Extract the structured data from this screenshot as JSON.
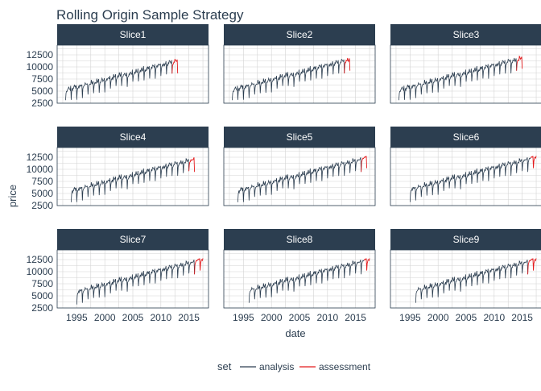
{
  "chart_data": {
    "type": "line",
    "title": "Rolling Origin Sample Strategy",
    "xlabel": "date",
    "ylabel": "price",
    "xlim": [
      1991.5,
      2018.5
    ],
    "ylim": [
      2500,
      14500
    ],
    "x_ticks": [
      1995,
      2000,
      2005,
      2010,
      2015
    ],
    "x_tick_labels": [
      "1995",
      "2000",
      "2005",
      "2010",
      "2015"
    ],
    "y_ticks": [
      2500,
      5000,
      7500,
      10000,
      12500
    ],
    "y_tick_labels": [
      "2500",
      "5000",
      "7500",
      "10000",
      "12500"
    ],
    "grid": true,
    "legend": {
      "title": "set",
      "position": "bottom",
      "entries": [
        {
          "label": "analysis",
          "color": "#2c3e50"
        },
        {
          "label": "assessment",
          "color": "#e31a1c"
        }
      ]
    },
    "colors": {
      "analysis": "#2c3e50",
      "assessment": "#e31a1c",
      "strip": "#2c3e50",
      "strip_text": "#ffffff",
      "grid": "#d4d4d4",
      "panel_border": "#2c3e50"
    },
    "series_model": {
      "frequency": "monthly",
      "start": 1993.0,
      "end": 2017.5,
      "level_start": 4300,
      "level_slope_per_year": 300,
      "seasonal_trough": -1400,
      "seasonal_peak": 1300
    },
    "facets": [
      {
        "label": "Slice1",
        "analysis": [
          1993.0,
          2012.0
        ],
        "assessment": [
          2012.0,
          2013.0
        ]
      },
      {
        "label": "Slice2",
        "analysis": [
          1993.0,
          2013.0
        ],
        "assessment": [
          2013.0,
          2014.0
        ]
      },
      {
        "label": "Slice3",
        "analysis": [
          1993.0,
          2014.0
        ],
        "assessment": [
          2014.0,
          2015.0
        ]
      },
      {
        "label": "Slice4",
        "analysis": [
          1994.0,
          2015.0
        ],
        "assessment": [
          2015.0,
          2016.0
        ]
      },
      {
        "label": "Slice5",
        "analysis": [
          1994.0,
          2016.0
        ],
        "assessment": [
          2016.0,
          2017.0
        ]
      },
      {
        "label": "Slice6",
        "analysis": [
          1995.0,
          2016.5
        ],
        "assessment": [
          2016.5,
          2017.5
        ]
      },
      {
        "label": "Slice7",
        "analysis": [
          1995.0,
          2016.0
        ],
        "assessment": [
          2016.0,
          2017.5
        ]
      },
      {
        "label": "Slice8",
        "analysis": [
          1996.0,
          2016.5
        ],
        "assessment": [
          2016.5,
          2017.5
        ]
      },
      {
        "label": "Slice9",
        "analysis": [
          1996.0,
          2016.0
        ],
        "assessment": [
          2016.0,
          2017.5
        ]
      }
    ]
  }
}
